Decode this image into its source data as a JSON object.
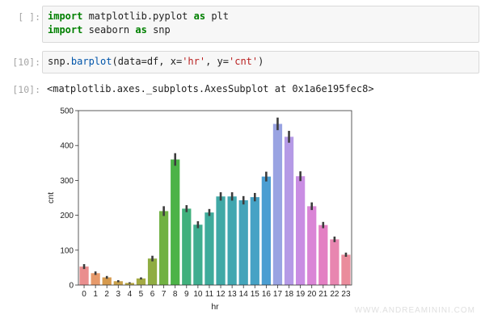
{
  "cells": [
    {
      "prompt": "[ ]:",
      "lines": [
        [
          {
            "t": "import",
            "c": "kw"
          },
          {
            "t": " matplotlib.pyplot ",
            "c": ""
          },
          {
            "t": "as",
            "c": "kw"
          },
          {
            "t": " plt",
            "c": ""
          }
        ],
        [
          {
            "t": "import",
            "c": "kw"
          },
          {
            "t": " seaborn ",
            "c": ""
          },
          {
            "t": "as",
            "c": "kw"
          },
          {
            "t": " snp",
            "c": ""
          }
        ]
      ]
    },
    {
      "prompt": "[10]:",
      "lines": [
        [
          {
            "t": "snp.",
            "c": ""
          },
          {
            "t": "barplot",
            "c": "nm"
          },
          {
            "t": "(data=df, x=",
            "c": ""
          },
          {
            "t": "'hr'",
            "c": "str"
          },
          {
            "t": ", y=",
            "c": ""
          },
          {
            "t": "'cnt'",
            "c": "str"
          },
          {
            "t": ")",
            "c": ""
          }
        ]
      ]
    }
  ],
  "output": {
    "prompt": "[10]:",
    "text": "<matplotlib.axes._subplots.AxesSubplot at 0x1a6e195fec8>"
  },
  "chart_data": {
    "type": "bar",
    "xlabel": "hr",
    "ylabel": "cnt",
    "ylim": [
      0,
      500
    ],
    "yticks": [
      0,
      100,
      200,
      300,
      400,
      500
    ],
    "categories": [
      "0",
      "1",
      "2",
      "3",
      "4",
      "5",
      "6",
      "7",
      "8",
      "9",
      "10",
      "11",
      "12",
      "13",
      "14",
      "15",
      "16",
      "17",
      "18",
      "19",
      "20",
      "21",
      "22",
      "23"
    ],
    "values": [
      53,
      34,
      22,
      11,
      6,
      19,
      76,
      212,
      360,
      219,
      173,
      208,
      254,
      254,
      243,
      252,
      311,
      462,
      425,
      312,
      226,
      172,
      131,
      87
    ],
    "error": [
      7,
      5,
      4,
      3,
      2,
      3,
      8,
      14,
      18,
      10,
      10,
      10,
      12,
      12,
      12,
      12,
      14,
      18,
      17,
      14,
      11,
      9,
      8,
      6
    ],
    "colors": [
      "#ea8e8e",
      "#e79a6b",
      "#d69a4e",
      "#c8a04a",
      "#b7a644",
      "#a4aa43",
      "#8fad42",
      "#70b142",
      "#4cb347",
      "#40b07c",
      "#3fad8f",
      "#3fab9b",
      "#40a9a6",
      "#41a7b0",
      "#43a4ba",
      "#46a2c5",
      "#4b9ed2",
      "#99a3e2",
      "#b59ae6",
      "#c98de3",
      "#da85d6",
      "#e37fc3",
      "#e886b0",
      "#ea8c9c"
    ]
  },
  "watermark": "WWW.ANDREAMININI.COM"
}
